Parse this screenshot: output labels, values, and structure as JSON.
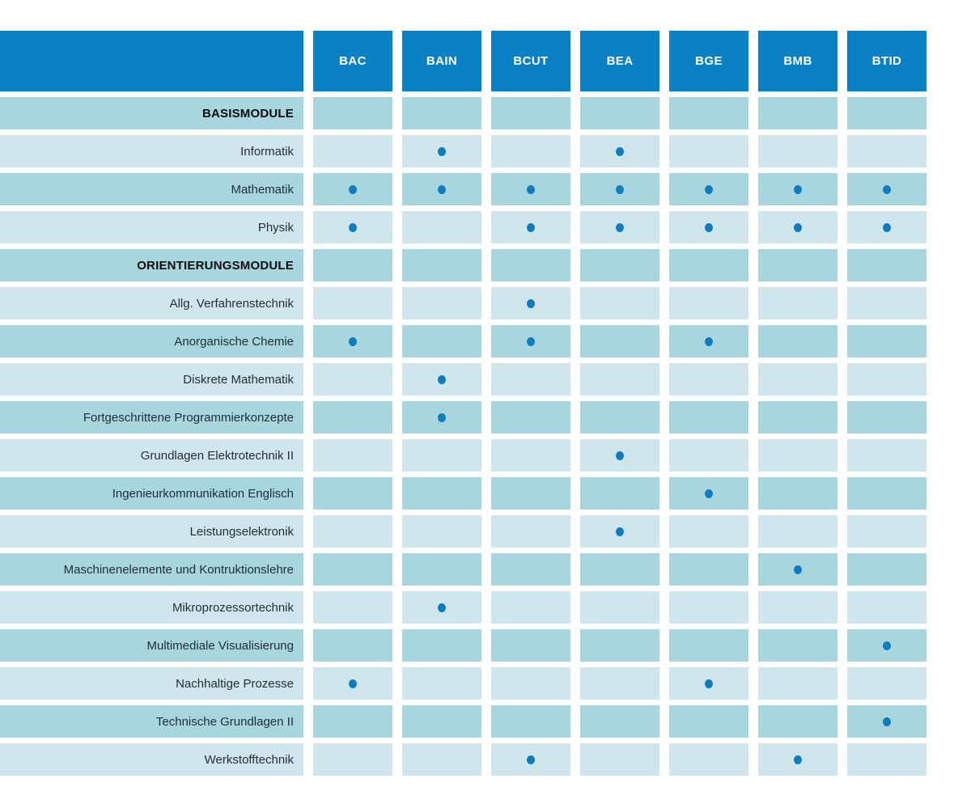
{
  "colors": {
    "header_blue": "#0a80c5",
    "row_dark": "#a7d6de",
    "row_light": "#cfe7ec",
    "dot_blue": "#0e7dc0",
    "label_color": "#1f2d36",
    "section_color": "#0c0c0c",
    "header_text": "#ffffff",
    "background": "#ffffff"
  },
  "chart_data": {
    "type": "table",
    "title": "",
    "legend_position": "none",
    "columns": [
      "BAC",
      "BAIN",
      "BCUT",
      "BEA",
      "BGE",
      "BMB",
      "BTID"
    ],
    "rows": [
      {
        "label": "BASISMODULE",
        "type": "section",
        "marks": [
          0,
          0,
          0,
          0,
          0,
          0,
          0
        ]
      },
      {
        "label": "Informatik",
        "type": "module",
        "marks": [
          0,
          1,
          0,
          1,
          0,
          0,
          0
        ]
      },
      {
        "label": "Mathematik",
        "type": "module",
        "marks": [
          1,
          1,
          1,
          1,
          1,
          1,
          1
        ]
      },
      {
        "label": "Physik",
        "type": "module",
        "marks": [
          1,
          0,
          1,
          1,
          1,
          1,
          1
        ]
      },
      {
        "label": "ORIENTIERUNGSMODULE",
        "type": "section",
        "marks": [
          0,
          0,
          0,
          0,
          0,
          0,
          0
        ]
      },
      {
        "label": "Allg. Verfahrenstechnik",
        "type": "module",
        "marks": [
          0,
          0,
          1,
          0,
          0,
          0,
          0
        ]
      },
      {
        "label": "Anorganische Chemie",
        "type": "module",
        "marks": [
          1,
          0,
          1,
          0,
          1,
          0,
          0
        ]
      },
      {
        "label": "Diskrete Mathematik",
        "type": "module",
        "marks": [
          0,
          1,
          0,
          0,
          0,
          0,
          0
        ]
      },
      {
        "label": "Fortgeschrittene Programmierkonzepte",
        "type": "module",
        "marks": [
          0,
          1,
          0,
          0,
          0,
          0,
          0
        ]
      },
      {
        "label": "Grundlagen Elektrotechnik II",
        "type": "module",
        "marks": [
          0,
          0,
          0,
          1,
          0,
          0,
          0
        ]
      },
      {
        "label": "Ingenieurkommunikation Englisch",
        "type": "module",
        "marks": [
          0,
          0,
          0,
          0,
          1,
          0,
          0
        ]
      },
      {
        "label": "Leistungselektronik",
        "type": "module",
        "marks": [
          0,
          0,
          0,
          1,
          0,
          0,
          0
        ]
      },
      {
        "label": "Maschinenelemente und Kontruktionslehre",
        "type": "module",
        "marks": [
          0,
          0,
          0,
          0,
          0,
          1,
          0
        ]
      },
      {
        "label": "Mikroprozessortechnik",
        "type": "module",
        "marks": [
          0,
          1,
          0,
          0,
          0,
          0,
          0
        ]
      },
      {
        "label": "Multimediale Visualisierung",
        "type": "module",
        "marks": [
          0,
          0,
          0,
          0,
          0,
          0,
          1
        ]
      },
      {
        "label": "Nachhaltige Prozesse",
        "type": "module",
        "marks": [
          1,
          0,
          0,
          0,
          1,
          0,
          0
        ]
      },
      {
        "label": "Technische Grundlagen II",
        "type": "module",
        "marks": [
          0,
          0,
          0,
          0,
          0,
          0,
          1
        ]
      },
      {
        "label": "Werkstofftechnik",
        "type": "module",
        "marks": [
          0,
          0,
          1,
          0,
          0,
          1,
          0
        ]
      }
    ]
  }
}
